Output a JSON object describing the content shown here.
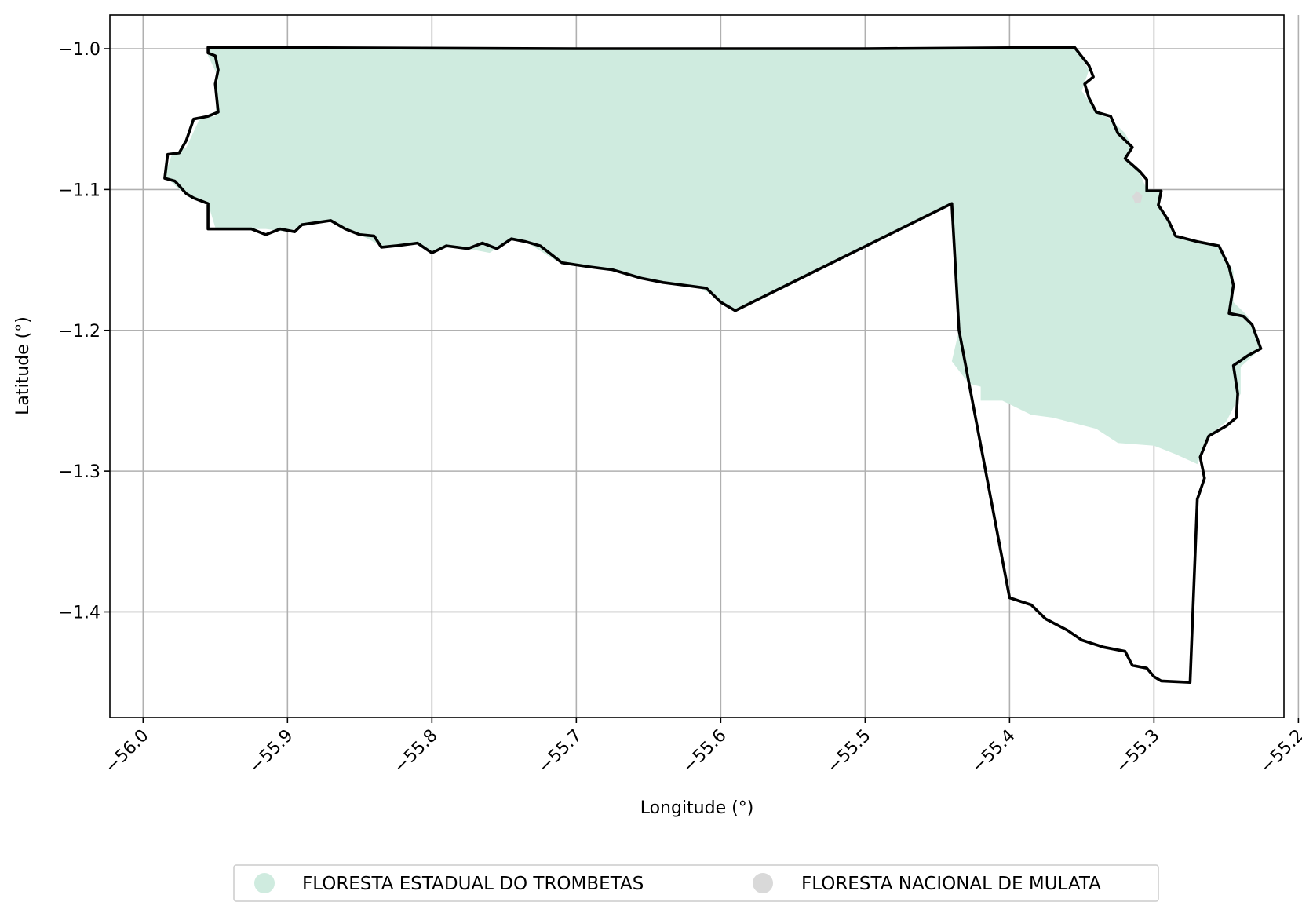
{
  "chart_data": {
    "type": "map",
    "xlabel": "Longitude (°)",
    "ylabel": "Latitude (°)",
    "xlim": [
      -56.023,
      -55.21
    ],
    "ylim": [
      -1.475,
      -0.976
    ],
    "grid": true,
    "x_ticks": [
      -56.0,
      -55.9,
      -55.8,
      -55.7,
      -55.6,
      -55.5,
      -55.4,
      -55.3,
      -55.2
    ],
    "y_ticks": [
      -1.0,
      -1.1,
      -1.2,
      -1.3,
      -1.4
    ],
    "x_tick_labels": [
      "−56.0",
      "−55.9",
      "−55.8",
      "−55.7",
      "−55.6",
      "−55.5",
      "−55.4",
      "−55.3",
      "−55.2"
    ],
    "y_tick_labels": [
      "−1.0",
      "−1.1",
      "−1.2",
      "−1.3",
      "−1.4"
    ],
    "legend_placement": "bottom-center",
    "legend": [
      {
        "label": "FLORESTA ESTADUAL DO TROMBETAS",
        "color": "#cfebdf"
      },
      {
        "label": "FLORESTA NACIONAL DE MULATA",
        "color": "#d9d9d9"
      }
    ],
    "regions": [
      {
        "name": "FLORESTA ESTADUAL DO TROMBETAS",
        "color": "#cfebdf",
        "coords": [
          [
            -55.955,
            -0.999
          ],
          [
            -55.7,
            -1.0
          ],
          [
            -55.5,
            -1.0
          ],
          [
            -55.355,
            -0.999
          ],
          [
            -55.345,
            -1.015
          ],
          [
            -55.35,
            -1.03
          ],
          [
            -55.34,
            -1.045
          ],
          [
            -55.33,
            -1.05
          ],
          [
            -55.32,
            -1.06
          ],
          [
            -55.315,
            -1.07
          ],
          [
            -55.32,
            -1.078
          ],
          [
            -55.31,
            -1.088
          ],
          [
            -55.305,
            -1.1
          ],
          [
            -55.295,
            -1.101
          ],
          [
            -55.298,
            -1.11
          ],
          [
            -55.29,
            -1.122
          ],
          [
            -55.285,
            -1.133
          ],
          [
            -55.27,
            -1.138
          ],
          [
            -55.255,
            -1.14
          ],
          [
            -55.245,
            -1.158
          ],
          [
            -55.245,
            -1.18
          ],
          [
            -55.235,
            -1.19
          ],
          [
            -55.226,
            -1.213
          ],
          [
            -55.24,
            -1.226
          ],
          [
            -55.24,
            -1.245
          ],
          [
            -55.25,
            -1.265
          ],
          [
            -55.262,
            -1.275
          ],
          [
            -55.27,
            -1.295
          ],
          [
            -55.285,
            -1.288
          ],
          [
            -55.3,
            -1.282
          ],
          [
            -55.325,
            -1.28
          ],
          [
            -55.34,
            -1.27
          ],
          [
            -55.37,
            -1.262
          ],
          [
            -55.385,
            -1.26
          ],
          [
            -55.405,
            -1.25
          ],
          [
            -55.42,
            -1.25
          ],
          [
            -55.42,
            -1.24
          ],
          [
            -55.428,
            -1.238
          ],
          [
            -55.434,
            -1.23
          ],
          [
            -55.44,
            -1.222
          ],
          [
            -55.435,
            -1.2
          ],
          [
            -55.44,
            -1.11
          ],
          [
            -55.588,
            -1.186
          ],
          [
            -55.598,
            -1.182
          ],
          [
            -55.605,
            -1.175
          ],
          [
            -55.615,
            -1.17
          ],
          [
            -55.63,
            -1.168
          ],
          [
            -55.645,
            -1.166
          ],
          [
            -55.655,
            -1.163
          ],
          [
            -55.665,
            -1.16
          ],
          [
            -55.69,
            -1.155
          ],
          [
            -55.715,
            -1.15
          ],
          [
            -55.735,
            -1.137
          ],
          [
            -55.745,
            -1.135
          ],
          [
            -55.76,
            -1.145
          ],
          [
            -55.775,
            -1.142
          ],
          [
            -55.79,
            -1.14
          ],
          [
            -55.8,
            -1.145
          ],
          [
            -55.81,
            -1.138
          ],
          [
            -55.825,
            -1.14
          ],
          [
            -55.835,
            -1.14
          ],
          [
            -55.85,
            -1.132
          ],
          [
            -55.87,
            -1.122
          ],
          [
            -55.89,
            -1.126
          ],
          [
            -55.9,
            -1.13
          ],
          [
            -55.915,
            -1.128
          ],
          [
            -55.935,
            -1.128
          ],
          [
            -55.95,
            -1.127
          ],
          [
            -55.955,
            -1.11
          ],
          [
            -55.965,
            -1.105
          ],
          [
            -55.975,
            -1.1
          ],
          [
            -55.985,
            -1.09
          ],
          [
            -55.98,
            -1.075
          ],
          [
            -55.97,
            -1.07
          ],
          [
            -55.96,
            -1.048
          ],
          [
            -55.95,
            -1.048
          ],
          [
            -55.948,
            -1.02
          ],
          [
            -55.955,
            -1.005
          ],
          [
            -55.955,
            -0.999
          ]
        ]
      },
      {
        "name": "FLORESTA NACIONAL DE MULATA",
        "color": "#d9d9d9",
        "coords": [
          [
            -55.312,
            -1.101
          ],
          [
            -55.308,
            -1.104
          ],
          [
            -55.309,
            -1.109
          ],
          [
            -55.313,
            -1.11
          ],
          [
            -55.315,
            -1.105
          ],
          [
            -55.312,
            -1.101
          ]
        ]
      }
    ],
    "boundary": {
      "color": "#000000",
      "coords": [
        [
          -55.955,
          -0.999
        ],
        [
          -55.7,
          -1.0
        ],
        [
          -55.5,
          -1.0
        ],
        [
          -55.355,
          -0.999
        ],
        [
          -55.345,
          -1.012
        ],
        [
          -55.342,
          -1.02
        ],
        [
          -55.348,
          -1.025
        ],
        [
          -55.345,
          -1.035
        ],
        [
          -55.34,
          -1.045
        ],
        [
          -55.33,
          -1.048
        ],
        [
          -55.325,
          -1.06
        ],
        [
          -55.315,
          -1.07
        ],
        [
          -55.32,
          -1.078
        ],
        [
          -55.31,
          -1.087
        ],
        [
          -55.305,
          -1.093
        ],
        [
          -55.305,
          -1.101
        ],
        [
          -55.295,
          -1.101
        ],
        [
          -55.297,
          -1.111
        ],
        [
          -55.29,
          -1.122
        ],
        [
          -55.285,
          -1.133
        ],
        [
          -55.27,
          -1.137
        ],
        [
          -55.255,
          -1.14
        ],
        [
          -55.248,
          -1.155
        ],
        [
          -55.245,
          -1.168
        ],
        [
          -55.248,
          -1.188
        ],
        [
          -55.238,
          -1.19
        ],
        [
          -55.232,
          -1.196
        ],
        [
          -55.226,
          -1.213
        ],
        [
          -55.235,
          -1.218
        ],
        [
          -55.245,
          -1.225
        ],
        [
          -55.242,
          -1.245
        ],
        [
          -55.243,
          -1.262
        ],
        [
          -55.25,
          -1.268
        ],
        [
          -55.262,
          -1.275
        ],
        [
          -55.268,
          -1.29
        ],
        [
          -55.265,
          -1.305
        ],
        [
          -55.27,
          -1.32
        ],
        [
          -55.275,
          -1.45
        ],
        [
          -55.295,
          -1.449
        ],
        [
          -55.3,
          -1.446
        ],
        [
          -55.305,
          -1.44
        ],
        [
          -55.315,
          -1.438
        ],
        [
          -55.32,
          -1.428
        ],
        [
          -55.335,
          -1.425
        ],
        [
          -55.35,
          -1.42
        ],
        [
          -55.36,
          -1.413
        ],
        [
          -55.375,
          -1.405
        ],
        [
          -55.385,
          -1.395
        ],
        [
          -55.4,
          -1.39
        ],
        [
          -55.435,
          -1.2
        ],
        [
          -55.44,
          -1.11
        ],
        [
          -55.59,
          -1.186
        ],
        [
          -55.6,
          -1.18
        ],
        [
          -55.61,
          -1.17
        ],
        [
          -55.625,
          -1.168
        ],
        [
          -55.64,
          -1.166
        ],
        [
          -55.655,
          -1.163
        ],
        [
          -55.665,
          -1.16
        ],
        [
          -55.675,
          -1.157
        ],
        [
          -55.69,
          -1.155
        ],
        [
          -55.71,
          -1.152
        ],
        [
          -55.725,
          -1.14
        ],
        [
          -55.735,
          -1.137
        ],
        [
          -55.745,
          -1.135
        ],
        [
          -55.755,
          -1.142
        ],
        [
          -55.765,
          -1.138
        ],
        [
          -55.775,
          -1.142
        ],
        [
          -55.79,
          -1.14
        ],
        [
          -55.8,
          -1.145
        ],
        [
          -55.81,
          -1.138
        ],
        [
          -55.825,
          -1.14
        ],
        [
          -55.835,
          -1.141
        ],
        [
          -55.84,
          -1.133
        ],
        [
          -55.85,
          -1.132
        ],
        [
          -55.86,
          -1.128
        ],
        [
          -55.87,
          -1.122
        ],
        [
          -55.89,
          -1.125
        ],
        [
          -55.895,
          -1.13
        ],
        [
          -55.905,
          -1.128
        ],
        [
          -55.915,
          -1.132
        ],
        [
          -55.925,
          -1.128
        ],
        [
          -55.935,
          -1.128
        ],
        [
          -55.945,
          -1.128
        ],
        [
          -55.955,
          -1.128
        ],
        [
          -55.955,
          -1.11
        ],
        [
          -55.965,
          -1.106
        ],
        [
          -55.97,
          -1.103
        ],
        [
          -55.978,
          -1.094
        ],
        [
          -55.985,
          -1.092
        ],
        [
          -55.983,
          -1.075
        ],
        [
          -55.975,
          -1.074
        ],
        [
          -55.97,
          -1.065
        ],
        [
          -55.965,
          -1.05
        ],
        [
          -55.955,
          -1.048
        ],
        [
          -55.948,
          -1.045
        ],
        [
          -55.95,
          -1.025
        ],
        [
          -55.948,
          -1.015
        ],
        [
          -55.95,
          -1.005
        ],
        [
          -55.955,
          -1.003
        ],
        [
          -55.955,
          -0.999
        ]
      ]
    }
  }
}
